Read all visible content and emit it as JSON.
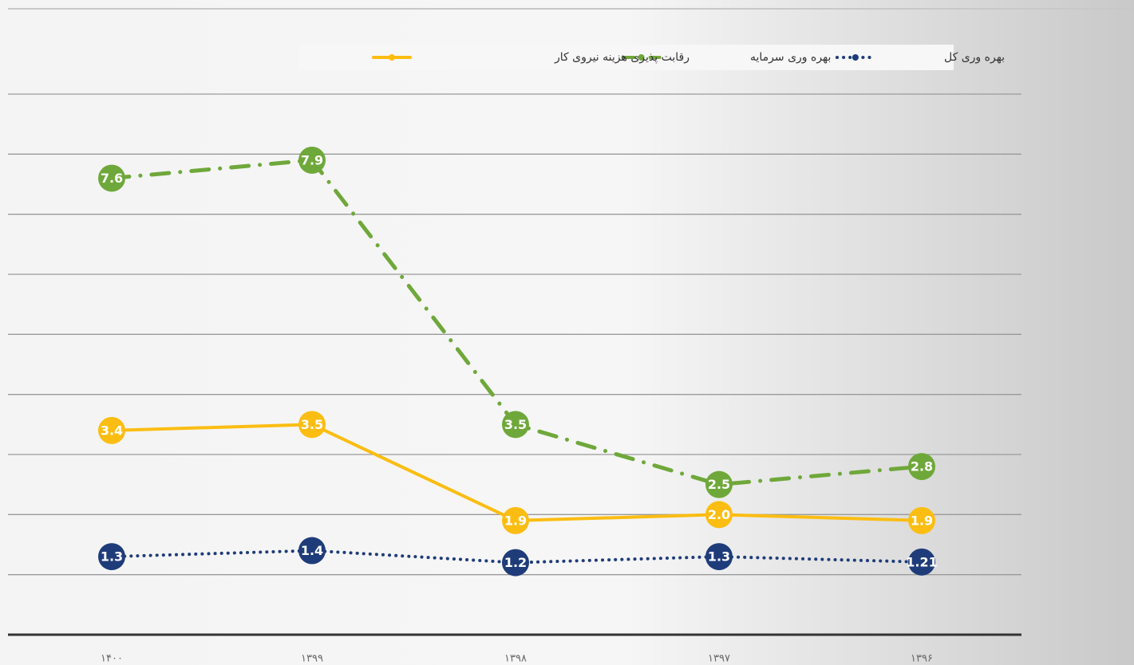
{
  "chart_data": {
    "type": "line",
    "categories": [
      "۱۴۰۰",
      "۱۳۹۹",
      "۱۳۹۸",
      "۱۳۹۷",
      "۱۳۹۶"
    ],
    "series": [
      {
        "name": "بهره وری کل",
        "color": "#1f3c7a",
        "dash": "dotted",
        "values": [
          1.3,
          1.4,
          1.2,
          1.3,
          1.21
        ]
      },
      {
        "name": "بهره وری سرمایه",
        "color": "#6fa83a",
        "dash": "dashdot",
        "values": [
          7.6,
          7.9,
          3.5,
          2.5,
          2.8
        ]
      },
      {
        "name": "رقابت پذیری هزینه نیروی کار",
        "color": "#fbbd12",
        "dash": "solid",
        "values": [
          3.4,
          3.5,
          1.9,
          2.0,
          1.9
        ],
        "value_labels": [
          "3.4",
          "3.5",
          "1.9",
          "2.0",
          "1.9"
        ]
      }
    ],
    "ylim": [
      0,
      9
    ],
    "yticks": [
      0,
      1,
      2,
      3,
      4,
      5,
      6,
      7,
      8,
      9
    ],
    "grid": true,
    "show_ytick_labels": false,
    "legend": "top"
  }
}
